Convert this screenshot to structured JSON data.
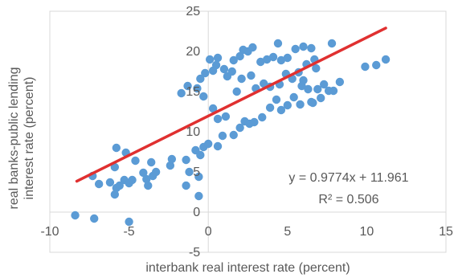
{
  "chart_data": {
    "type": "scatter",
    "xlabel": "interbank real interest rate (percent)",
    "ylabel": "real banks-public lending interest rate (percent)",
    "xlim": [
      -10,
      15
    ],
    "ylim": [
      -5,
      25
    ],
    "x_ticks": [
      "-10",
      "-5",
      "0",
      "5",
      "10",
      "15"
    ],
    "y_ticks": [
      "25",
      "20",
      "15",
      "10",
      "5",
      "0",
      "-5"
    ],
    "grid": false,
    "colors": {
      "points": "#5b9bd5",
      "trendline": "#e03030",
      "axis": "#d9d9d9",
      "text": "#595959"
    },
    "trendline": {
      "slope": 0.9774,
      "intercept": 11.961,
      "x_range": [
        -8.3,
        11.2
      ],
      "equation": "y = 0.9774x + 11.961",
      "r_squared": "R² = 0.506"
    },
    "points": [
      {
        "x": -8.4,
        "y": -0.4
      },
      {
        "x": -7.2,
        "y": -0.8
      },
      {
        "x": -5,
        "y": -1.2
      },
      {
        "x": -7.3,
        "y": 4.5
      },
      {
        "x": -6.9,
        "y": 3.5
      },
      {
        "x": -6.2,
        "y": 3.7
      },
      {
        "x": -5.8,
        "y": 3.0
      },
      {
        "x": -5.9,
        "y": 2.2
      },
      {
        "x": -5.6,
        "y": 3.3
      },
      {
        "x": -5.3,
        "y": 4.0
      },
      {
        "x": -5.0,
        "y": 3.6
      },
      {
        "x": -4.8,
        "y": 4.0
      },
      {
        "x": -5.9,
        "y": 5.6
      },
      {
        "x": -5.2,
        "y": 7.4
      },
      {
        "x": -5.8,
        "y": 8.0
      },
      {
        "x": -4.6,
        "y": 6.4
      },
      {
        "x": -4.1,
        "y": 4.9
      },
      {
        "x": -3.9,
        "y": 4.1
      },
      {
        "x": -3.8,
        "y": 3.3
      },
      {
        "x": -3.5,
        "y": 4.5
      },
      {
        "x": -3.3,
        "y": 5.0
      },
      {
        "x": -3.6,
        "y": 6.2
      },
      {
        "x": -2.4,
        "y": 5.8
      },
      {
        "x": -2.3,
        "y": 6.6
      },
      {
        "x": -1.4,
        "y": 6.5
      },
      {
        "x": -1.4,
        "y": 3.3
      },
      {
        "x": -1.2,
        "y": 5.0
      },
      {
        "x": -0.8,
        "y": 7.7
      },
      {
        "x": -0.5,
        "y": 7.1
      },
      {
        "x": -0.6,
        "y": 4.4
      },
      {
        "x": -0.6,
        "y": 2.0
      },
      {
        "x": -0.3,
        "y": 8.1
      },
      {
        "x": 0.0,
        "y": 8.5
      },
      {
        "x": 0.6,
        "y": 8.2
      },
      {
        "x": 0.9,
        "y": 9.5
      },
      {
        "x": 1.1,
        "y": 11.9
      },
      {
        "x": 0.6,
        "y": 11.6
      },
      {
        "x": 0.3,
        "y": 12.9
      },
      {
        "x": -0.3,
        "y": 14.4
      },
      {
        "x": -1.7,
        "y": 14.8
      },
      {
        "x": -1.3,
        "y": 15.7
      },
      {
        "x": -0.7,
        "y": 15.4
      },
      {
        "x": -0.5,
        "y": 16.6
      },
      {
        "x": -0.2,
        "y": 17.3
      },
      {
        "x": 0.3,
        "y": 17.6
      },
      {
        "x": 0.5,
        "y": 18.3
      },
      {
        "x": 0.6,
        "y": 19.2
      },
      {
        "x": 0.1,
        "y": 19.0
      },
      {
        "x": 1.0,
        "y": 17.8
      },
      {
        "x": 1.2,
        "y": 16.9
      },
      {
        "x": 1.5,
        "y": 17.5
      },
      {
        "x": 1.6,
        "y": 18.9
      },
      {
        "x": 2.0,
        "y": 19.4
      },
      {
        "x": 2.2,
        "y": 20.2
      },
      {
        "x": 2.5,
        "y": 20.0
      },
      {
        "x": 2.8,
        "y": 20.5
      },
      {
        "x": 3.3,
        "y": 18.7
      },
      {
        "x": 3.7,
        "y": 19.0
      },
      {
        "x": 4.1,
        "y": 19.3
      },
      {
        "x": 4.4,
        "y": 21.0
      },
      {
        "x": 4.6,
        "y": 18.9
      },
      {
        "x": 5.0,
        "y": 19.2
      },
      {
        "x": 5.5,
        "y": 20.3
      },
      {
        "x": 6.0,
        "y": 20.6
      },
      {
        "x": 6.5,
        "y": 20.4
      },
      {
        "x": 7.8,
        "y": 21.0
      },
      {
        "x": 6.2,
        "y": 18.4
      },
      {
        "x": 6.7,
        "y": 19.0
      },
      {
        "x": 6.8,
        "y": 17.9
      },
      {
        "x": 5.7,
        "y": 17.4
      },
      {
        "x": 5.3,
        "y": 16.6
      },
      {
        "x": 4.9,
        "y": 17.2
      },
      {
        "x": 4.5,
        "y": 15.9
      },
      {
        "x": 3.9,
        "y": 15.6
      },
      {
        "x": 3.5,
        "y": 16.0
      },
      {
        "x": 3.0,
        "y": 15.4
      },
      {
        "x": 2.7,
        "y": 17.0
      },
      {
        "x": 2.1,
        "y": 16.6
      },
      {
        "x": 1.8,
        "y": 15.0
      },
      {
        "x": 6.0,
        "y": 16.4
      },
      {
        "x": 6.3,
        "y": 15.3
      },
      {
        "x": 5.9,
        "y": 15.7
      },
      {
        "x": 6.9,
        "y": 15.3
      },
      {
        "x": 7.3,
        "y": 15.9
      },
      {
        "x": 7.9,
        "y": 15.1
      },
      {
        "x": 8.3,
        "y": 16.2
      },
      {
        "x": 7.6,
        "y": 15.1
      },
      {
        "x": 7.1,
        "y": 14.2
      },
      {
        "x": 6.6,
        "y": 13.6
      },
      {
        "x": 5.4,
        "y": 14.3
      },
      {
        "x": 5.0,
        "y": 13.3
      },
      {
        "x": 4.6,
        "y": 12.7
      },
      {
        "x": 4.3,
        "y": 14.0
      },
      {
        "x": 3.9,
        "y": 13.0
      },
      {
        "x": 3.4,
        "y": 11.8
      },
      {
        "x": 2.9,
        "y": 11.2
      },
      {
        "x": 2.6,
        "y": 11.0
      },
      {
        "x": 2.3,
        "y": 11.3
      },
      {
        "x": 2.0,
        "y": 10.5
      },
      {
        "x": 1.6,
        "y": 9.6
      },
      {
        "x": 5.8,
        "y": 13.4
      },
      {
        "x": 6.5,
        "y": 13.7
      },
      {
        "x": 9.9,
        "y": 18.1
      },
      {
        "x": 10.6,
        "y": 18.3
      },
      {
        "x": 11.2,
        "y": 19.0
      }
    ]
  }
}
